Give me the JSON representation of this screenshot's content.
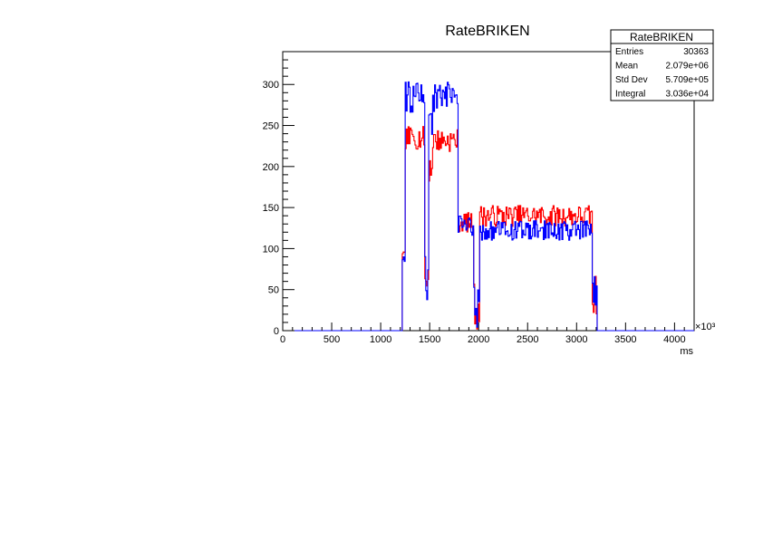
{
  "chart_data": {
    "type": "line",
    "title": "RateBRIKEN",
    "xlabel": "ms",
    "x_multiplier_label": "×10³",
    "ylabel": "",
    "xlim": [
      0,
      4200
    ],
    "ylim": [
      0,
      340
    ],
    "x_ticks": [
      0,
      500,
      1000,
      1500,
      2000,
      2500,
      3000,
      3500,
      4000
    ],
    "y_ticks": [
      0,
      50,
      100,
      150,
      200,
      250,
      300
    ],
    "grid": false,
    "stats_box": {
      "title": "RateBRIKEN",
      "rows": [
        {
          "label": "Entries",
          "value": "30363"
        },
        {
          "label": "Mean",
          "value": "2.079e+06"
        },
        {
          "label": "Std Dev",
          "value": "5.709e+05"
        },
        {
          "label": "Integral",
          "value": "3.036e+04"
        }
      ]
    },
    "series": [
      {
        "color": "#ff0000",
        "segments": [
          {
            "x0": 0,
            "x1": 1220,
            "base": 0,
            "amp": 0,
            "noise": 0
          },
          {
            "x0": 1220,
            "x1": 1245,
            "base": 90,
            "amp": 0,
            "noise": 6
          },
          {
            "x0": 1245,
            "x1": 1450,
            "base": 235,
            "amp": 0,
            "noise": 14
          },
          {
            "x0": 1450,
            "x1": 1490,
            "base": 60,
            "amp": 0,
            "noise": 30
          },
          {
            "x0": 1490,
            "x1": 1530,
            "base": 200,
            "amp": 0,
            "noise": 20
          },
          {
            "x0": 1530,
            "x1": 1790,
            "base": 232,
            "amp": 0,
            "noise": 14
          },
          {
            "x0": 1790,
            "x1": 1950,
            "base": 132,
            "amp": 0,
            "noise": 12
          },
          {
            "x0": 1950,
            "x1": 2010,
            "base": 30,
            "amp": 0,
            "noise": 30
          },
          {
            "x0": 2010,
            "x1": 3160,
            "base": 140,
            "amp": 0,
            "noise": 13
          },
          {
            "x0": 3160,
            "x1": 3210,
            "base": 40,
            "amp": 0,
            "noise": 30
          },
          {
            "x0": 3210,
            "x1": 4200,
            "base": 0,
            "amp": 0,
            "noise": 0
          }
        ]
      },
      {
        "color": "#0000ff",
        "segments": [
          {
            "x0": 0,
            "x1": 1220,
            "base": 0,
            "amp": 0,
            "noise": 0
          },
          {
            "x0": 1220,
            "x1": 1245,
            "base": 90,
            "amp": 0,
            "noise": 6
          },
          {
            "x0": 1245,
            "x1": 1450,
            "base": 285,
            "amp": 0,
            "noise": 20
          },
          {
            "x0": 1450,
            "x1": 1490,
            "base": 60,
            "amp": 0,
            "noise": 35
          },
          {
            "x0": 1490,
            "x1": 1530,
            "base": 240,
            "amp": 0,
            "noise": 30
          },
          {
            "x0": 1530,
            "x1": 1790,
            "base": 285,
            "amp": 0,
            "noise": 18
          },
          {
            "x0": 1790,
            "x1": 1950,
            "base": 128,
            "amp": 0,
            "noise": 12
          },
          {
            "x0": 1950,
            "x1": 2010,
            "base": 25,
            "amp": 0,
            "noise": 30
          },
          {
            "x0": 2010,
            "x1": 3160,
            "base": 122,
            "amp": 0,
            "noise": 12
          },
          {
            "x0": 3160,
            "x1": 3210,
            "base": 40,
            "amp": 0,
            "noise": 30
          },
          {
            "x0": 3210,
            "x1": 4200,
            "base": 0,
            "amp": 0,
            "noise": 0
          }
        ]
      }
    ]
  }
}
